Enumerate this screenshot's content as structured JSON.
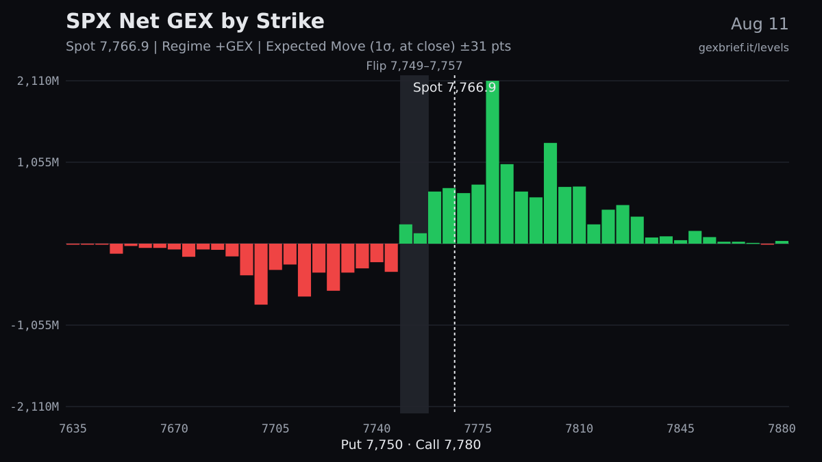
{
  "header": {
    "title": "SPX Net GEX by Strike",
    "subtitle": "Spot 7,766.9 | Regime +GEX | Expected Move (1σ, at close) ±31 pts",
    "date": "Aug 11",
    "source": "gexbrief.it/levels"
  },
  "footer": {
    "label": "Put 7,750 · Call 7,780"
  },
  "colors": {
    "background": "#0b0c10",
    "positive": "#22c55e",
    "negative": "#ef4444",
    "grid": "#2a2e37",
    "band": "#22262e",
    "text": "#e5e7eb",
    "muted": "#9ca3af"
  },
  "chart_data": {
    "type": "bar",
    "title": "SPX Net GEX by Strike",
    "xlabel": "",
    "ylabel": "",
    "x": [
      7635,
      7640,
      7645,
      7650,
      7655,
      7660,
      7665,
      7670,
      7675,
      7680,
      7685,
      7690,
      7695,
      7700,
      7705,
      7710,
      7715,
      7720,
      7725,
      7730,
      7735,
      7740,
      7745,
      7750,
      7755,
      7760,
      7765,
      7770,
      7775,
      7780,
      7785,
      7790,
      7795,
      7800,
      7805,
      7810,
      7815,
      7820,
      7825,
      7830,
      7835,
      7840,
      7845,
      7850,
      7855,
      7860,
      7865,
      7870,
      7875,
      7880
    ],
    "values": [
      -5,
      -5,
      -5,
      -130,
      -30,
      -55,
      -55,
      -75,
      -170,
      -75,
      -80,
      -165,
      -410,
      -790,
      -340,
      -270,
      -685,
      -375,
      -610,
      -375,
      -320,
      -240,
      -365,
      250,
      135,
      675,
      720,
      655,
      765,
      2110,
      1030,
      675,
      600,
      1305,
      735,
      740,
      250,
      440,
      500,
      350,
      80,
      95,
      45,
      165,
      85,
      25,
      25,
      10,
      -10,
      35
    ],
    "ylim": [
      -2110,
      2110
    ],
    "yticks": [
      2110,
      1055,
      -1055,
      -2110
    ],
    "ytick_labels": [
      "2,110M",
      "1,055M",
      "-1,055M",
      "-2,110M"
    ],
    "xticks": [
      7635,
      7670,
      7705,
      7740,
      7775,
      7810,
      7845,
      7880
    ],
    "xtick_labels": [
      "7635",
      "7670",
      "7705",
      "7740",
      "7775",
      "7810",
      "7845",
      "7880"
    ],
    "xlim": [
      7632.5,
      7882.5
    ],
    "spot": 7766.9,
    "spot_label": "Spot 7,766.9",
    "flip_range": [
      7749,
      7757
    ],
    "flip_label": "Flip 7,749–7,757",
    "grid": true
  }
}
